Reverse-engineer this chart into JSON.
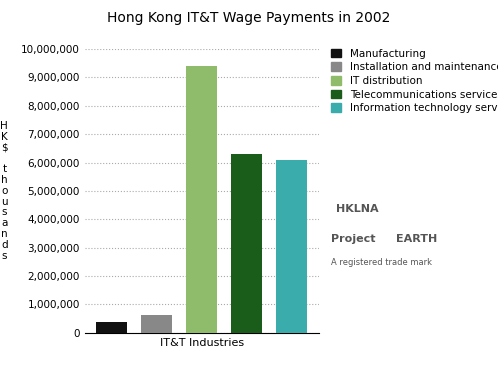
{
  "title": "Hong Kong IT&T Wage Payments in 2002",
  "xlabel": "IT&T Industries",
  "ylabel_lines": [
    "H",
    "K",
    "$",
    " ",
    "t",
    "h",
    "o",
    "u",
    "s",
    "a",
    "n",
    "d",
    "s"
  ],
  "categories": [
    "Manufacturing",
    "Installation and maintenance",
    "IT distribution",
    "Telecommunications services",
    "Information technology services"
  ],
  "values": [
    380000,
    620000,
    9400000,
    6300000,
    6100000
  ],
  "colors": [
    "#111111",
    "#888888",
    "#8fbc6a",
    "#1a5c1a",
    "#3aacac"
  ],
  "ylim": [
    0,
    10000000
  ],
  "yticks": [
    0,
    1000000,
    2000000,
    3000000,
    4000000,
    5000000,
    6000000,
    7000000,
    8000000,
    9000000,
    10000000
  ],
  "ytick_labels": [
    "0",
    "1,000,000",
    "2,000,000",
    "3,000,000",
    "4,000,000",
    "5,000,000",
    "6,000,000",
    "7,000,000",
    "8,000,000",
    "9,000,000",
    "10,000,000"
  ],
  "grid_color": "#aaaaaa",
  "background_color": "#ffffff",
  "title_fontsize": 10,
  "axis_fontsize": 7.5,
  "legend_fontsize": 7.5,
  "bar_width": 0.7,
  "watermark_line1": "HKLNA",
  "watermark_line2": "Project",
  "watermark_line3": "EARTH",
  "watermark_line4": "A registered trade mark"
}
